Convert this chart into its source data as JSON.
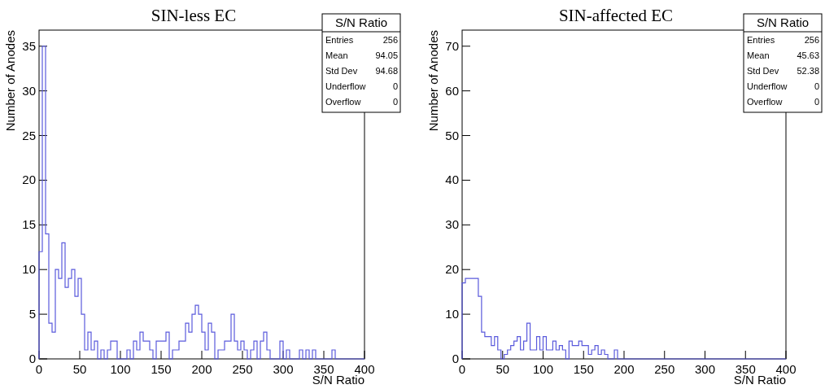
{
  "chart_data": [
    {
      "type": "histogram",
      "title": "SIN-less EC",
      "xlabel": "S/N Ratio",
      "ylabel": "Number of Anodes",
      "color": "#5a5adc",
      "bins": [
        0,
        4,
        8,
        12,
        16,
        20,
        24,
        28,
        32,
        36,
        40,
        44,
        48,
        52,
        56,
        60,
        64,
        68,
        72,
        76,
        80,
        84,
        88,
        92,
        96,
        100,
        104,
        108,
        112,
        116,
        120,
        124,
        128,
        132,
        136,
        140,
        144,
        148,
        152,
        156,
        160,
        164,
        168,
        172,
        176,
        180,
        184,
        188,
        192,
        196,
        200,
        204,
        208,
        212,
        216,
        220,
        224,
        228,
        232,
        236,
        240,
        244,
        248,
        252,
        256,
        260,
        264,
        268,
        272,
        276,
        280,
        284,
        288,
        292,
        296,
        300,
        304,
        308,
        312,
        316,
        320,
        324,
        328,
        332,
        336,
        340,
        344,
        348,
        352,
        356,
        360,
        364,
        368,
        372,
        376,
        380,
        384,
        388,
        392,
        396,
        400
      ],
      "values": [
        12,
        35,
        14,
        4,
        3,
        10,
        9,
        13,
        8,
        9,
        10,
        7,
        9,
        5,
        1,
        3,
        1,
        2,
        0,
        1,
        0,
        1,
        2,
        2,
        0,
        0,
        0,
        1,
        0,
        2,
        1,
        3,
        2,
        2,
        1,
        0,
        2,
        2,
        2,
        3,
        0,
        1,
        1,
        2,
        2,
        4,
        3,
        5,
        6,
        5,
        3,
        1,
        4,
        3,
        0,
        1,
        1,
        2,
        2,
        5,
        2,
        1,
        2,
        1,
        0,
        1,
        2,
        0,
        2,
        3,
        1,
        0,
        0,
        0,
        2,
        0,
        1,
        0,
        0,
        0,
        1,
        0,
        1,
        0,
        1,
        0,
        0,
        0,
        0,
        0,
        1,
        0,
        0,
        0,
        0,
        0,
        0,
        0,
        0,
        0
      ],
      "xlim": [
        0,
        400
      ],
      "xticks": [
        0,
        50,
        100,
        150,
        200,
        250,
        300,
        350,
        400
      ],
      "ylim": [
        0,
        36.8
      ],
      "yticks": [
        0,
        5,
        10,
        15,
        20,
        25,
        30,
        35
      ],
      "annotations": [
        "S/N Ratio",
        "Entries",
        "256",
        "Mean",
        "94.05",
        "Std Dev",
        "94.68",
        "Underflow",
        "0",
        "Overflow",
        "0"
      ]
    },
    {
      "type": "histogram",
      "title": "SIN-affected EC",
      "xlabel": "S/N Ratio",
      "ylabel": "Number of Anodes",
      "color": "#5a5adc",
      "bins": [
        0,
        4,
        8,
        12,
        16,
        20,
        24,
        28,
        32,
        36,
        40,
        44,
        48,
        52,
        56,
        60,
        64,
        68,
        72,
        76,
        80,
        84,
        88,
        92,
        96,
        100,
        104,
        108,
        112,
        116,
        120,
        124,
        128,
        132,
        136,
        140,
        144,
        148,
        152,
        156,
        160,
        164,
        168,
        172,
        176,
        180,
        184,
        188,
        192,
        196,
        200,
        204,
        208,
        212,
        216,
        220,
        224,
        228,
        232,
        236,
        240,
        244,
        248,
        252,
        256,
        260,
        264,
        268,
        272,
        276,
        280,
        284,
        288,
        292,
        296,
        300,
        304,
        308,
        312,
        316,
        320,
        324,
        328,
        332,
        336,
        340,
        344,
        348,
        352,
        356,
        360,
        364,
        368,
        372,
        376,
        380,
        384,
        388,
        392,
        396,
        400
      ],
      "values": [
        17,
        18,
        18,
        18,
        18,
        14,
        6,
        5,
        5,
        3,
        5,
        2,
        0,
        1,
        2,
        3,
        4,
        5,
        2,
        4,
        8,
        2,
        2,
        5,
        2,
        5,
        2,
        2,
        4,
        2,
        3,
        2,
        0,
        4,
        3,
        3,
        4,
        3,
        3,
        1,
        2,
        3,
        1,
        2,
        1,
        0,
        0,
        2,
        0,
        0,
        0,
        0,
        0,
        0,
        0,
        0,
        0,
        0,
        0,
        0,
        0,
        0,
        0,
        0,
        0,
        0,
        0,
        0,
        0,
        0,
        0,
        0,
        0,
        0,
        0,
        0,
        0,
        0,
        0,
        0,
        0,
        0,
        0,
        0,
        0,
        0,
        0,
        0,
        0,
        0,
        0,
        0,
        0,
        0,
        0,
        0,
        0,
        0,
        0,
        0
      ],
      "xlim": [
        0,
        400
      ],
      "xticks": [
        0,
        50,
        100,
        150,
        200,
        250,
        300,
        350,
        400
      ],
      "ylim": [
        0,
        73.6
      ],
      "yticks": [
        0,
        10,
        20,
        30,
        40,
        50,
        60,
        70
      ],
      "annotations": [
        "S/N Ratio",
        "Entries",
        "256",
        "Mean",
        "45.63",
        "Std Dev",
        "52.38",
        "Underflow",
        "0",
        "Overflow",
        "0"
      ]
    }
  ]
}
